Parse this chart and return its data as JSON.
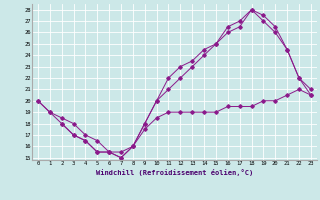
{
  "xlabel": "Windchill (Refroidissement éolien,°C)",
  "background_color": "#cce8e8",
  "line_color": "#8b1a8b",
  "xlim": [
    -0.5,
    23.5
  ],
  "ylim": [
    14.8,
    28.5
  ],
  "xticks": [
    0,
    1,
    2,
    3,
    4,
    5,
    6,
    7,
    8,
    9,
    10,
    11,
    12,
    13,
    14,
    15,
    16,
    17,
    18,
    19,
    20,
    21,
    22,
    23
  ],
  "yticks": [
    15,
    16,
    17,
    18,
    19,
    20,
    21,
    22,
    23,
    24,
    25,
    26,
    27,
    28
  ],
  "lines": [
    {
      "x": [
        0,
        1,
        2,
        3,
        4,
        5,
        6,
        7,
        8,
        9,
        10,
        11,
        12,
        13,
        14,
        15,
        16,
        17,
        18,
        19,
        20,
        21,
        22,
        23
      ],
      "y": [
        20,
        19,
        18.5,
        18,
        17,
        16.5,
        15.5,
        15.5,
        16,
        17.5,
        18.5,
        19,
        19,
        19,
        19,
        19,
        19.5,
        19.5,
        19.5,
        20,
        20,
        20.5,
        21,
        20.5
      ]
    },
    {
      "x": [
        0,
        1,
        2,
        3,
        4,
        5,
        6,
        7,
        8,
        9,
        10,
        11,
        12,
        13,
        14,
        15,
        16,
        17,
        18,
        19,
        20,
        21,
        22,
        23
      ],
      "y": [
        20,
        19,
        18,
        17,
        16.5,
        15.5,
        15.5,
        15,
        16,
        18,
        20,
        21,
        22,
        23,
        24,
        25,
        26,
        26.5,
        28,
        27,
        26,
        24.5,
        22,
        20.5
      ]
    },
    {
      "x": [
        2,
        3,
        4,
        5,
        6,
        7,
        8,
        9,
        10,
        11,
        12,
        13,
        14,
        15,
        16,
        17,
        18,
        19,
        20,
        21,
        22,
        23
      ],
      "y": [
        18,
        17,
        16.5,
        15.5,
        15.5,
        15,
        16,
        18,
        20,
        22,
        23,
        23.5,
        24.5,
        25,
        26.5,
        27,
        28,
        27.5,
        26.5,
        24.5,
        22,
        21
      ]
    }
  ]
}
